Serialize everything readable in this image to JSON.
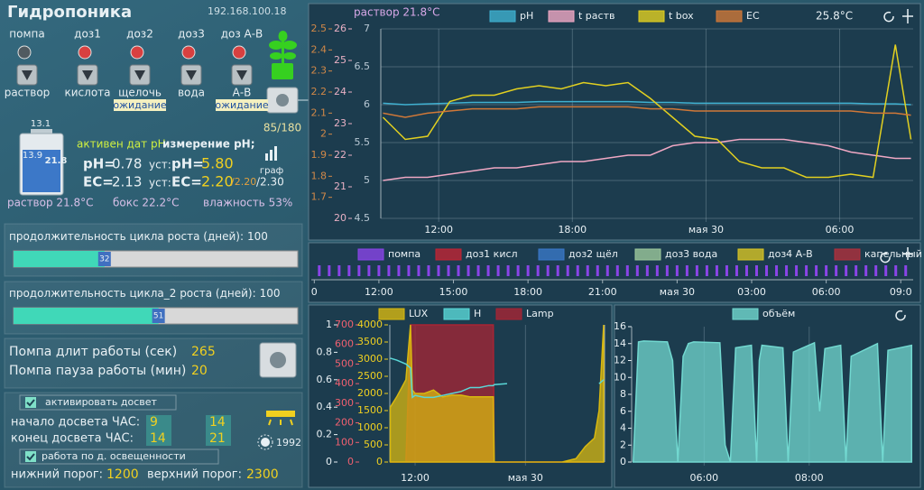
{
  "header": {
    "title": "Гидропоника",
    "ip": "192.168.100.18"
  },
  "devices": [
    {
      "name": "помпа",
      "label": "раствор"
    },
    {
      "name": "доз1",
      "label": "кислота"
    },
    {
      "name": "доз2",
      "label": "щелочь",
      "status": "ожидание"
    },
    {
      "name": "доз3",
      "label": "вода"
    },
    {
      "name": "доз А-В",
      "label": "А-В",
      "status": "ожидание"
    }
  ],
  "plant": {
    "counter": "85/180"
  },
  "tank": {
    "top": 13.1,
    "level": 13.9,
    "temp": 21.8
  },
  "sensors": {
    "active": "активен дат pH",
    "measuring": "измерение pH;",
    "ph_label": "pH=",
    "ph": 0.78,
    "set_label": "уст:",
    "ph_set_label": "pH=",
    "ph_set": "5.80",
    "ec_label": "EC=",
    "ec": 2.13,
    "ec_set_label": "EC=",
    "ec_set": "2.20",
    "ec_low": "/2.20",
    "ec_high": "/2.30",
    "graph": "граф"
  },
  "status": {
    "solution": "раствор 21.8°C",
    "box": "бокс 22.2°C",
    "humidity": "влажность 53%"
  },
  "sliders": [
    {
      "label": "продолжительность цикла роста (дней):",
      "max": 100,
      "value": 32
    },
    {
      "label": "продолжительность цикла_2 роста (дней):",
      "max": 100,
      "value": 51
    }
  ],
  "pump": {
    "on_label": "Помпа длит работы  (сек)",
    "on": 265,
    "pause_label": "Помпа пауза работы (мин)",
    "pause": 20
  },
  "lighting": {
    "enable": "активировать досвет",
    "start_label": "начало досвета ЧАС:",
    "start": [
      9,
      14
    ],
    "end_label": "конец досвета  ЧАС:",
    "end": [
      14,
      21
    ],
    "lux": 1992,
    "by_light": "работа по д. освещенности",
    "low_label": "нижний порог:",
    "low": 1200,
    "high_label": "верхний порог:",
    "high": 2300
  },
  "chart_data": [
    {
      "type": "line",
      "annotations": [
        "раствор 21.8°C",
        "25.8°C"
      ],
      "x": [
        9.5,
        10.5,
        11.5,
        12.5,
        13.5,
        14.5,
        15.5,
        16.5,
        17.5,
        18.5,
        19.5,
        20.5,
        21.5,
        22.5,
        23.5,
        24.5,
        25.5,
        26.5,
        27.5,
        28.5,
        29.5,
        30.5,
        31.5,
        32.5,
        33.2
      ],
      "xlim": [
        9.4,
        33.3
      ],
      "xticks": [
        {
          "value": 12,
          "label": "12:00"
        },
        {
          "value": 18,
          "label": "18:00"
        },
        {
          "value": 24,
          "label": "мая 30"
        },
        {
          "value": 30,
          "label": "06:00"
        }
      ],
      "ylim": [
        4.5,
        7
      ],
      "yticks": [
        4.5,
        5,
        5.5,
        6,
        6.5,
        7
      ],
      "y2lim": [
        20,
        26
      ],
      "y2ticks": [
        20,
        21,
        22,
        23,
        24,
        25,
        26
      ],
      "y3lim": [
        1.6,
        2.5
      ],
      "y3ticks": [
        1.7,
        1.8,
        1.9,
        2,
        2.1,
        2.2,
        2.3,
        2.4,
        2.5
      ],
      "grid": true,
      "series": [
        {
          "name": "pH",
          "color": "#3fb0d0",
          "axis": "y",
          "values": [
            6.02,
            6.0,
            6.01,
            6.02,
            6.03,
            6.03,
            6.03,
            6.04,
            6.04,
            6.04,
            6.04,
            6.04,
            6.03,
            6.03,
            6.02,
            6.02,
            6.02,
            6.02,
            6.02,
            6.02,
            6.02,
            6.02,
            6.01,
            6.01,
            6.0
          ]
        },
        {
          "name": "t раств",
          "color": "#f0a8c4",
          "axis": "y2",
          "values": [
            21.2,
            21.3,
            21.3,
            21.4,
            21.5,
            21.6,
            21.6,
            21.7,
            21.8,
            21.8,
            21.9,
            22.0,
            22.0,
            22.3,
            22.4,
            22.4,
            22.5,
            22.5,
            22.5,
            22.4,
            22.3,
            22.1,
            22.0,
            21.9,
            21.9
          ]
        },
        {
          "name": "t box",
          "color": "#e2d020",
          "axis": "y2",
          "values": [
            23.2,
            22.5,
            22.6,
            23.7,
            23.9,
            23.9,
            24.1,
            24.2,
            24.1,
            24.3,
            24.2,
            24.3,
            23.8,
            23.2,
            22.6,
            22.5,
            21.8,
            21.6,
            21.6,
            21.3,
            21.3,
            21.4,
            21.3,
            25.5,
            22.5
          ]
        },
        {
          "name": "EC",
          "color": "#d07838",
          "axis": "y3",
          "values": [
            2.1,
            2.08,
            2.1,
            2.11,
            2.12,
            2.12,
            2.12,
            2.13,
            2.13,
            2.13,
            2.13,
            2.13,
            2.12,
            2.12,
            2.11,
            2.11,
            2.11,
            2.11,
            2.11,
            2.11,
            2.11,
            2.11,
            2.1,
            2.1,
            2.09
          ]
        }
      ]
    },
    {
      "type": "timeline",
      "xlim": [
        9.28,
        33.5
      ],
      "xticks": [
        {
          "value": 9.4,
          "label": "0"
        },
        {
          "value": 12,
          "label": "12:00"
        },
        {
          "value": 15,
          "label": "15:00"
        },
        {
          "value": 18,
          "label": "18:00"
        },
        {
          "value": 21,
          "label": "21:00"
        },
        {
          "value": 24,
          "label": "мая 30"
        },
        {
          "value": 27,
          "label": "03:00"
        },
        {
          "value": 30,
          "label": "06:00"
        },
        {
          "value": 33,
          "label": "09:0"
        }
      ],
      "series": [
        {
          "name": "помпа",
          "color": "#8a44e8",
          "values": [
            9.6,
            10,
            10.4,
            10.8,
            11.2,
            11.6,
            12,
            12.4,
            12.8,
            13.2,
            13.6,
            14,
            14.4,
            14.8,
            15.2,
            15.6,
            16,
            16.4,
            16.8,
            17.2,
            17.6,
            18,
            18.4,
            18.8,
            19.2,
            19.6,
            20,
            20.4,
            20.8,
            21.2,
            21.6,
            22,
            22.4,
            22.8,
            23.2,
            23.6,
            24,
            24.4,
            24.8,
            25.2,
            25.6,
            26,
            26.4,
            26.8,
            27.2,
            27.6,
            28,
            28.4,
            28.8,
            29.2,
            29.6,
            30,
            30.4,
            30.8,
            31.2,
            31.6,
            32,
            32.4,
            32.8,
            33.2
          ]
        },
        {
          "name": "доз1 кисл",
          "color": "#c02434",
          "values": []
        },
        {
          "name": "доз2 щёл",
          "color": "#3a78c8",
          "values": []
        },
        {
          "name": "доз3 вода",
          "color": "#9cc89c",
          "values": []
        },
        {
          "name": "доз4 А-В",
          "color": "#d8c424",
          "values": []
        },
        {
          "name": "капельный",
          "color": "#b0303c",
          "values": []
        }
      ]
    },
    {
      "type": "area",
      "x": [
        9.3,
        10,
        11,
        11.5,
        11.7,
        12,
        13,
        14,
        15,
        16,
        17,
        18,
        19,
        20,
        20.5,
        20.6,
        22,
        24,
        26,
        28,
        29.5,
        30.5,
        31.5,
        32,
        32.5
      ],
      "xlim": [
        9.25,
        32.6
      ],
      "xticks": [
        {
          "value": 12,
          "label": "12:00"
        },
        {
          "value": 24,
          "label": "мая 30"
        }
      ],
      "ylim": [
        0,
        1
      ],
      "yticks": [
        0,
        0.2,
        0.4,
        0.6,
        0.8,
        1
      ],
      "y2lim": [
        0,
        700
      ],
      "y2ticks": [
        0,
        100,
        200,
        300,
        400,
        500,
        600,
        700
      ],
      "y3lim": [
        0,
        4000
      ],
      "y3ticks": [
        0,
        500,
        1000,
        1500,
        2000,
        2500,
        3000,
        3500,
        4000
      ],
      "series": [
        {
          "name": "LUX",
          "color": "#d8b810",
          "axis": "y3",
          "values": [
            1600,
            1900,
            2400,
            4000,
            2100,
            2000,
            2000,
            2100,
            1900,
            1950,
            1950,
            1900,
            1900,
            1900,
            1900,
            0,
            0,
            0,
            0,
            0,
            100,
            450,
            700,
            1500,
            4000
          ]
        },
        {
          "name": "H",
          "color": "#5ad8d8",
          "axis": "y2",
          "values": [
            530,
            520,
            500,
            480,
            330,
            340,
            330,
            330,
            340,
            350,
            360,
            380,
            380,
            390,
            390,
            395,
            400,
            null,
            null,
            null,
            null,
            null,
            null,
            400,
            420
          ]
        },
        {
          "name": "Lamp",
          "color": "#a82434",
          "axis": "y",
          "values": [
            0,
            0,
            0,
            1,
            1,
            1,
            1,
            1,
            1,
            1,
            1,
            1,
            1,
            1,
            1,
            0,
            0,
            0,
            0,
            0,
            0,
            0,
            0,
            0,
            0
          ]
        }
      ]
    },
    {
      "type": "area",
      "x": [
        4.65,
        4.75,
        4.85,
        5.3,
        5.4,
        5.5,
        5.6,
        5.7,
        5.8,
        6.3,
        6.4,
        6.5,
        6.6,
        6.9,
        7.0,
        7.05,
        7.1,
        7.5,
        7.6,
        7.7,
        8.1,
        8.2,
        8.3,
        8.6,
        8.7,
        8.8,
        9.3,
        9.4,
        9.5,
        9.95
      ],
      "xlim": [
        4.62,
        9.98
      ],
      "xticks": [
        {
          "value": 6,
          "label": "06:00"
        },
        {
          "value": 8,
          "label": "08:00"
        }
      ],
      "ylim": [
        0,
        16
      ],
      "yticks": [
        0,
        2,
        4,
        6,
        8,
        10,
        12,
        14,
        16
      ],
      "series": [
        {
          "name": "объём",
          "color": "#72d8d0",
          "values": [
            0,
            14.2,
            14.3,
            14.2,
            12,
            0,
            12.5,
            14,
            14.2,
            14.1,
            2,
            0,
            13.5,
            13.8,
            0,
            12,
            13.8,
            13.5,
            0,
            13,
            14.1,
            6,
            13.4,
            13.8,
            0,
            12.5,
            14,
            0,
            13.2,
            13.8
          ]
        }
      ]
    }
  ]
}
